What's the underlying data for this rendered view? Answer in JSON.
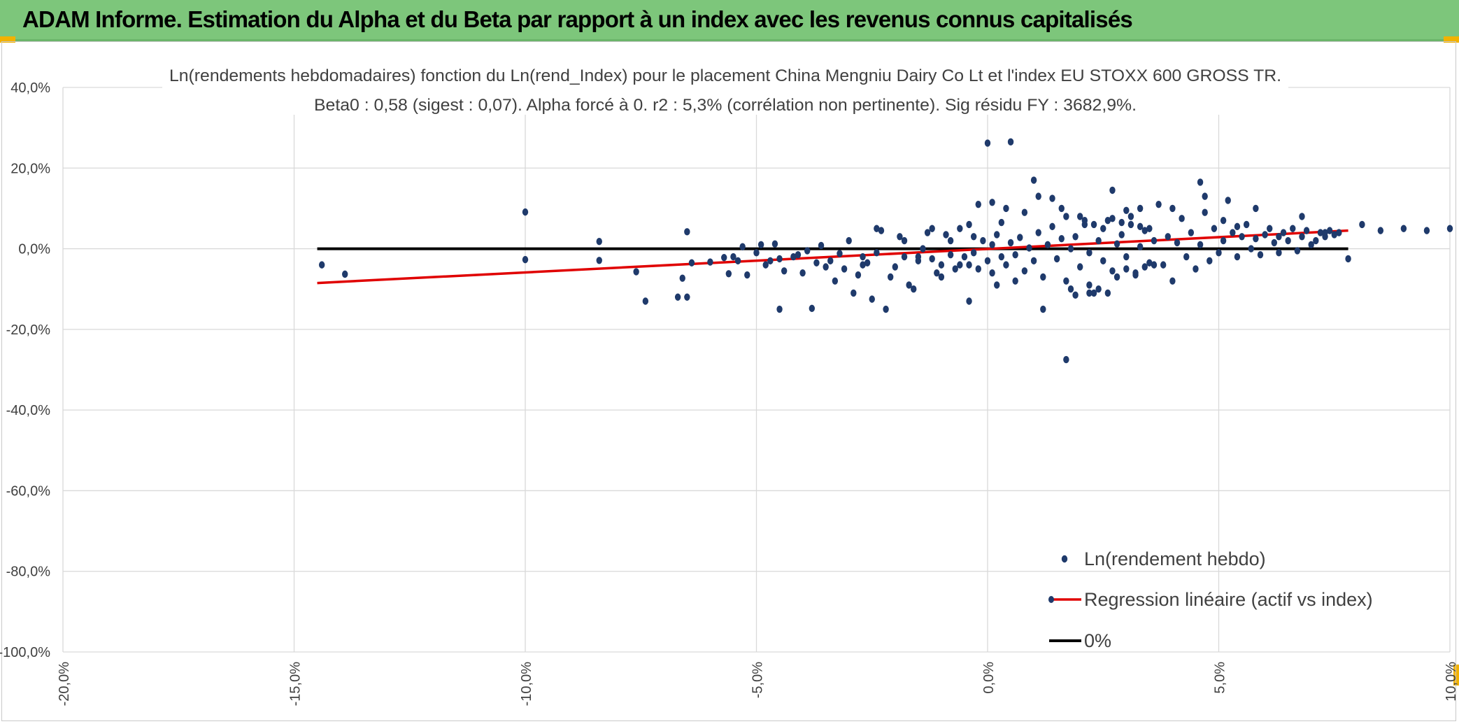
{
  "header": {
    "title": "ADAM Informe. Estimation du Alpha et du Beta par rapport à un index avec les revenus connus capitalisés"
  },
  "colors": {
    "banner": "#7dc67b",
    "accent_corner": "#f2b200",
    "points": "#1f3a6b",
    "regression": "#e00000",
    "zero_line": "#000000",
    "grid": "#d9d9d9"
  },
  "chart_data": {
    "type": "scatter",
    "title": "Ln(rendements hebdomadaires) fonction du Ln(rend_Index) pour le placement China Mengniu Dairy Co Lt et l'index EU STOXX 600 GROSS TR.",
    "subtitle": "Beta0 : 0,58 (sigest : 0,07). Alpha forcé à 0. r2 : 5,3% (corrélation non pertinente). Sig résidu FY : 3682,9%.",
    "xlim": [
      -0.2,
      0.1
    ],
    "ylim": [
      -1.0,
      0.4
    ],
    "x_ticks": [
      -0.2,
      -0.15,
      -0.1,
      -0.05,
      0.0,
      0.05,
      0.1
    ],
    "x_tick_labels": [
      "-20,0%",
      "-15,0%",
      "-10,0%",
      "-5,0%",
      "0,0%",
      "5,0%",
      "10,0%"
    ],
    "y_ticks": [
      0.4,
      0.2,
      0.0,
      -0.2,
      -0.4,
      -0.6,
      -0.8,
      -1.0
    ],
    "y_tick_labels": [
      "40,0%",
      "20,0%",
      "0,0%",
      "-20,0%",
      "-40,0%",
      "-60,0%",
      "-80,0%",
      "-100,0%"
    ],
    "grid": true,
    "legend_position": "bottom-right",
    "series": [
      {
        "name": "Ln(rendement hebdo)",
        "kind": "scatter",
        "points": [
          [
            -0.144,
            -0.04
          ],
          [
            -0.139,
            -0.063
          ],
          [
            -0.1,
            0.091
          ],
          [
            -0.1,
            -0.027
          ],
          [
            -0.084,
            0.018
          ],
          [
            -0.084,
            -0.029
          ],
          [
            -0.076,
            -0.057
          ],
          [
            -0.074,
            -0.13
          ],
          [
            -0.067,
            -0.12
          ],
          [
            -0.066,
            -0.073
          ],
          [
            -0.065,
            0.042
          ],
          [
            -0.064,
            -0.035
          ],
          [
            -0.06,
            -0.033
          ],
          [
            -0.057,
            -0.022
          ],
          [
            -0.056,
            -0.062
          ],
          [
            -0.055,
            -0.02
          ],
          [
            -0.054,
            -0.03
          ],
          [
            -0.053,
            0.005
          ],
          [
            -0.052,
            -0.065
          ],
          [
            -0.05,
            -0.01
          ],
          [
            -0.049,
            0.01
          ],
          [
            -0.048,
            -0.04
          ],
          [
            -0.047,
            -0.03
          ],
          [
            -0.046,
            0.012
          ],
          [
            -0.045,
            -0.025
          ],
          [
            -0.044,
            -0.055
          ],
          [
            -0.042,
            -0.02
          ],
          [
            -0.041,
            -0.015
          ],
          [
            -0.04,
            -0.06
          ],
          [
            -0.039,
            -0.005
          ],
          [
            -0.038,
            -0.148
          ],
          [
            -0.037,
            -0.035
          ],
          [
            -0.036,
            0.008
          ],
          [
            -0.035,
            -0.045
          ],
          [
            -0.034,
            -0.03
          ],
          [
            -0.033,
            -0.08
          ],
          [
            -0.032,
            -0.012
          ],
          [
            -0.031,
            -0.05
          ],
          [
            -0.03,
            0.02
          ],
          [
            -0.029,
            -0.11
          ],
          [
            -0.028,
            -0.065
          ],
          [
            -0.027,
            -0.02
          ],
          [
            -0.026,
            -0.035
          ],
          [
            -0.025,
            -0.125
          ],
          [
            -0.024,
            -0.01
          ],
          [
            -0.023,
            0.045
          ],
          [
            -0.022,
            -0.15
          ],
          [
            -0.021,
            -0.07
          ],
          [
            -0.02,
            -0.045
          ],
          [
            -0.019,
            0.03
          ],
          [
            -0.018,
            -0.02
          ],
          [
            -0.017,
            -0.09
          ],
          [
            -0.016,
            -0.1
          ],
          [
            -0.015,
            -0.03
          ],
          [
            -0.014,
            0.0
          ],
          [
            -0.013,
            0.04
          ],
          [
            -0.012,
            -0.025
          ],
          [
            -0.011,
            -0.06
          ],
          [
            -0.01,
            -0.04
          ],
          [
            -0.009,
            0.035
          ],
          [
            -0.008,
            -0.015
          ],
          [
            -0.007,
            -0.05
          ],
          [
            -0.006,
            0.05
          ],
          [
            -0.005,
            -0.02
          ],
          [
            -0.004,
            -0.13
          ],
          [
            -0.004,
            -0.04
          ],
          [
            -0.003,
            0.03
          ],
          [
            -0.003,
            -0.01
          ],
          [
            -0.002,
            -0.05
          ],
          [
            -0.001,
            0.02
          ],
          [
            0.0,
            -0.03
          ],
          [
            0.001,
            0.01
          ],
          [
            0.001,
            -0.06
          ],
          [
            0.002,
            0.035
          ],
          [
            0.003,
            -0.02
          ],
          [
            0.003,
            0.065
          ],
          [
            0.004,
            -0.04
          ],
          [
            0.005,
            0.015
          ],
          [
            0.005,
            0.265
          ],
          [
            0.006,
            -0.015
          ],
          [
            0.007,
            0.028
          ],
          [
            0.008,
            -0.055
          ],
          [
            0.009,
            0.002
          ],
          [
            0.01,
            -0.03
          ],
          [
            0.011,
            0.04
          ],
          [
            0.012,
            -0.07
          ],
          [
            0.013,
            0.01
          ],
          [
            0.014,
            0.055
          ],
          [
            0.015,
            -0.025
          ],
          [
            0.016,
            0.025
          ],
          [
            0.017,
            -0.08
          ],
          [
            0.018,
            0.0
          ],
          [
            0.019,
            0.03
          ],
          [
            0.02,
            -0.045
          ],
          [
            0.021,
            0.06
          ],
          [
            0.022,
            -0.01
          ],
          [
            0.023,
            -0.11
          ],
          [
            0.024,
            0.02
          ],
          [
            0.025,
            -0.03
          ],
          [
            0.026,
            0.07
          ],
          [
            0.027,
            -0.055
          ],
          [
            0.028,
            0.012
          ],
          [
            0.029,
            0.035
          ],
          [
            0.03,
            -0.02
          ],
          [
            0.031,
            0.08
          ],
          [
            0.032,
            -0.065
          ],
          [
            0.033,
            0.005
          ],
          [
            0.034,
            0.045
          ],
          [
            0.035,
            -0.035
          ],
          [
            0.036,
            0.02
          ],
          [
            0.037,
            0.11
          ],
          [
            0.038,
            -0.04
          ],
          [
            0.039,
            0.03
          ],
          [
            0.04,
            -0.08
          ],
          [
            0.041,
            0.015
          ],
          [
            0.042,
            0.075
          ],
          [
            0.043,
            -0.02
          ],
          [
            0.044,
            0.04
          ],
          [
            0.045,
            -0.05
          ],
          [
            0.046,
            0.01
          ],
          [
            0.047,
            0.09
          ],
          [
            0.048,
            -0.03
          ],
          [
            0.049,
            0.05
          ],
          [
            0.05,
            -0.01
          ],
          [
            0.051,
            0.02
          ],
          [
            0.052,
            0.12
          ],
          [
            0.053,
            0.04
          ],
          [
            0.054,
            -0.02
          ],
          [
            0.055,
            0.03
          ],
          [
            0.056,
            0.06
          ],
          [
            0.057,
            0.0
          ],
          [
            0.058,
            0.025
          ],
          [
            0.059,
            -0.015
          ],
          [
            0.06,
            0.035
          ],
          [
            0.061,
            0.05
          ],
          [
            0.062,
            0.015
          ],
          [
            0.063,
            -0.01
          ],
          [
            0.064,
            0.04
          ],
          [
            0.065,
            0.02
          ],
          [
            0.066,
            0.05
          ],
          [
            0.067,
            -0.005
          ],
          [
            0.068,
            0.03
          ],
          [
            0.069,
            0.045
          ],
          [
            0.07,
            0.01
          ],
          [
            0.071,
            0.02
          ],
          [
            0.072,
            0.04
          ],
          [
            0.073,
            0.03
          ],
          [
            0.074,
            0.045
          ],
          [
            0.075,
            0.035
          ],
          [
            0.076,
            0.04
          ],
          [
            -0.065,
            -0.12
          ],
          [
            -0.045,
            -0.15
          ],
          [
            -0.027,
            -0.04
          ],
          [
            -0.024,
            0.05
          ],
          [
            -0.018,
            0.02
          ],
          [
            -0.015,
            -0.02
          ],
          [
            -0.012,
            0.05
          ],
          [
            -0.01,
            -0.07
          ],
          [
            -0.008,
            0.02
          ],
          [
            -0.006,
            -0.04
          ],
          [
            -0.004,
            0.06
          ],
          [
            -0.002,
            0.11
          ],
          [
            0.0,
            0.262
          ],
          [
            0.001,
            0.115
          ],
          [
            0.002,
            -0.09
          ],
          [
            0.004,
            0.1
          ],
          [
            0.006,
            -0.08
          ],
          [
            0.008,
            0.09
          ],
          [
            0.01,
            0.17
          ],
          [
            0.011,
            0.13
          ],
          [
            0.012,
            -0.15
          ],
          [
            0.014,
            0.125
          ],
          [
            0.016,
            0.1
          ],
          [
            0.017,
            0.08
          ],
          [
            0.018,
            -0.1
          ],
          [
            0.02,
            0.08
          ],
          [
            0.021,
            0.07
          ],
          [
            0.022,
            -0.09
          ],
          [
            0.023,
            0.06
          ],
          [
            0.024,
            -0.1
          ],
          [
            0.025,
            0.05
          ],
          [
            0.026,
            -0.11
          ],
          [
            0.027,
            0.075
          ],
          [
            0.028,
            -0.07
          ],
          [
            0.029,
            0.065
          ],
          [
            0.03,
            -0.05
          ],
          [
            0.031,
            0.06
          ],
          [
            0.032,
            -0.06
          ],
          [
            0.033,
            0.055
          ],
          [
            0.034,
            -0.045
          ],
          [
            0.035,
            0.05
          ],
          [
            0.036,
            -0.04
          ],
          [
            0.017,
            -0.275
          ],
          [
            0.019,
            -0.115
          ],
          [
            0.022,
            -0.11
          ],
          [
            0.027,
            0.145
          ],
          [
            0.03,
            0.095
          ],
          [
            0.033,
            0.1
          ],
          [
            0.04,
            0.1
          ],
          [
            0.046,
            0.165
          ],
          [
            0.047,
            0.13
          ],
          [
            0.051,
            0.07
          ],
          [
            0.054,
            0.055
          ],
          [
            0.058,
            0.1
          ],
          [
            0.063,
            0.03
          ],
          [
            0.068,
            0.08
          ],
          [
            0.073,
            0.04
          ],
          [
            0.078,
            -0.025
          ],
          [
            0.081,
            0.06
          ],
          [
            0.085,
            0.045
          ],
          [
            0.09,
            0.05
          ],
          [
            0.095,
            0.045
          ],
          [
            0.1,
            0.05
          ],
          [
            0.105,
            0.035
          ],
          [
            0.11,
            0.045
          ]
        ]
      },
      {
        "name": "Regression linéaire (actif vs index)",
        "kind": "line",
        "points": [
          [
            -0.145,
            -0.085
          ],
          [
            0.078,
            0.045
          ]
        ]
      },
      {
        "name": "0%",
        "kind": "line",
        "points": [
          [
            -0.145,
            0.0
          ],
          [
            0.078,
            0.0
          ]
        ]
      }
    ]
  }
}
